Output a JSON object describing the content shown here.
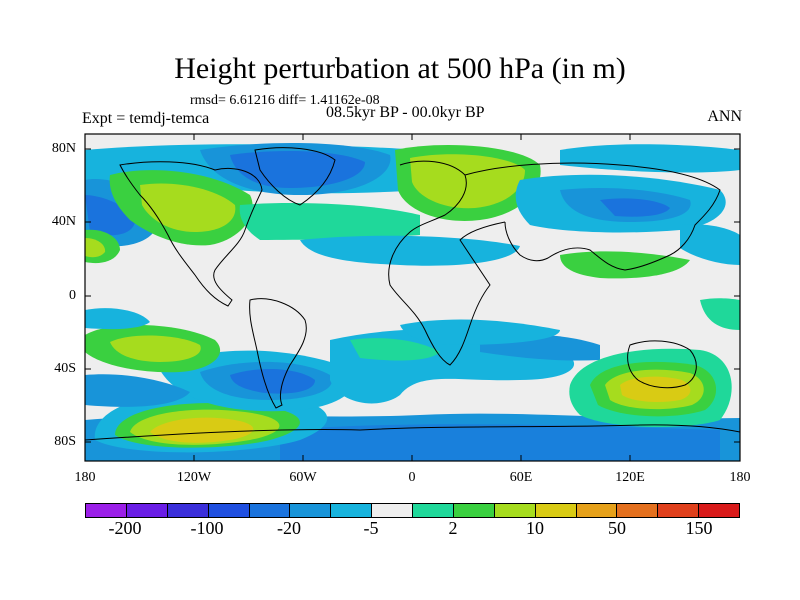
{
  "title": "Height perturbation at 500 hPa (in m)",
  "stats": "rmsd= 6.61216 diff= 1.41162e-08",
  "expt": "Expt = temdj-temca",
  "period": "08.5kyr BP - 00.0kyr BP",
  "season": "ANN",
  "lat_ticks": [
    "80N",
    "40N",
    "0",
    "40S",
    "80S"
  ],
  "lon_ticks": [
    "180",
    "120W",
    "60W",
    "0",
    "60E",
    "120E",
    "180"
  ],
  "colorbar": {
    "colors": [
      "#9b1fe8",
      "#6a1ee6",
      "#3b2fdb",
      "#1f4fe0",
      "#1a73dd",
      "#1894d9",
      "#17b3dd",
      "#eeeeee",
      "#1fd89a",
      "#3ad040",
      "#a6dc1e",
      "#d9cb14",
      "#e6a11a",
      "#e4701e",
      "#e0401c",
      "#d91a1a"
    ],
    "labels": [
      "-200",
      "-100",
      "-20",
      "-5",
      "2",
      "10",
      "50",
      "150"
    ]
  },
  "colors": {
    "land_outline": "#000000",
    "background_zero": "#eeeeee"
  }
}
